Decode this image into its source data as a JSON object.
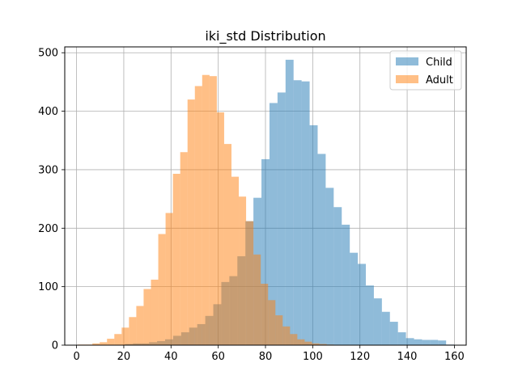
{
  "chart_data": {
    "type": "bar",
    "title": "iki_std Distribution",
    "xlabel": "",
    "ylabel": "",
    "xlim": [
      -5,
      165
    ],
    "ylim": [
      0,
      510
    ],
    "xticks": [
      0,
      20,
      40,
      60,
      80,
      100,
      120,
      140,
      160
    ],
    "yticks": [
      0,
      100,
      200,
      300,
      400,
      500
    ],
    "grid": true,
    "legend": "top-right",
    "series": [
      {
        "name": "Child",
        "color": "#1f77b4",
        "alpha": 0.5,
        "bin_edges": [
          20.5,
          23.9,
          27.3,
          30.7,
          34.1,
          37.5,
          40.9,
          44.3,
          47.7,
          51.1,
          54.5,
          57.9,
          61.3,
          64.7,
          68.1,
          71.5,
          74.9,
          78.3,
          81.7,
          85.1,
          88.5,
          91.9,
          95.3,
          98.7,
          102.1,
          105.5,
          108.9,
          112.3,
          115.7,
          119.1,
          122.5,
          125.9,
          129.3,
          132.7,
          136.1,
          139.5,
          142.9,
          146.3,
          149.7,
          153.1,
          156.5,
          159.9
        ],
        "counts": [
          2,
          3,
          3,
          5,
          7,
          10,
          16,
          22,
          30,
          36,
          50,
          70,
          108,
          118,
          152,
          212,
          252,
          318,
          414,
          432,
          488,
          453,
          451,
          376,
          327,
          269,
          236,
          206,
          158,
          139,
          102,
          80,
          57,
          40,
          22,
          12,
          10,
          9,
          9,
          8,
          1
        ]
      },
      {
        "name": "Adult",
        "color": "#ff7f0e",
        "alpha": 0.5,
        "bin_edges": [
          0.5,
          3.6,
          6.7,
          9.8,
          12.9,
          16.0,
          19.1,
          22.2,
          25.3,
          28.4,
          31.5,
          34.6,
          37.7,
          40.8,
          43.9,
          47.0,
          50.1,
          53.2,
          56.3,
          59.4,
          62.5,
          65.6,
          68.7,
          71.8,
          74.9,
          78.0,
          81.1,
          84.2,
          87.3,
          90.4,
          93.5,
          96.6,
          99.7,
          102.8,
          105.9,
          109.0
        ],
        "counts": [
          1,
          1,
          3,
          5,
          11,
          19,
          30,
          48,
          67,
          96,
          112,
          190,
          226,
          293,
          330,
          420,
          443,
          462,
          460,
          398,
          344,
          288,
          254,
          212,
          155,
          105,
          77,
          51,
          32,
          19,
          10,
          6,
          3,
          2,
          1
        ]
      }
    ]
  }
}
